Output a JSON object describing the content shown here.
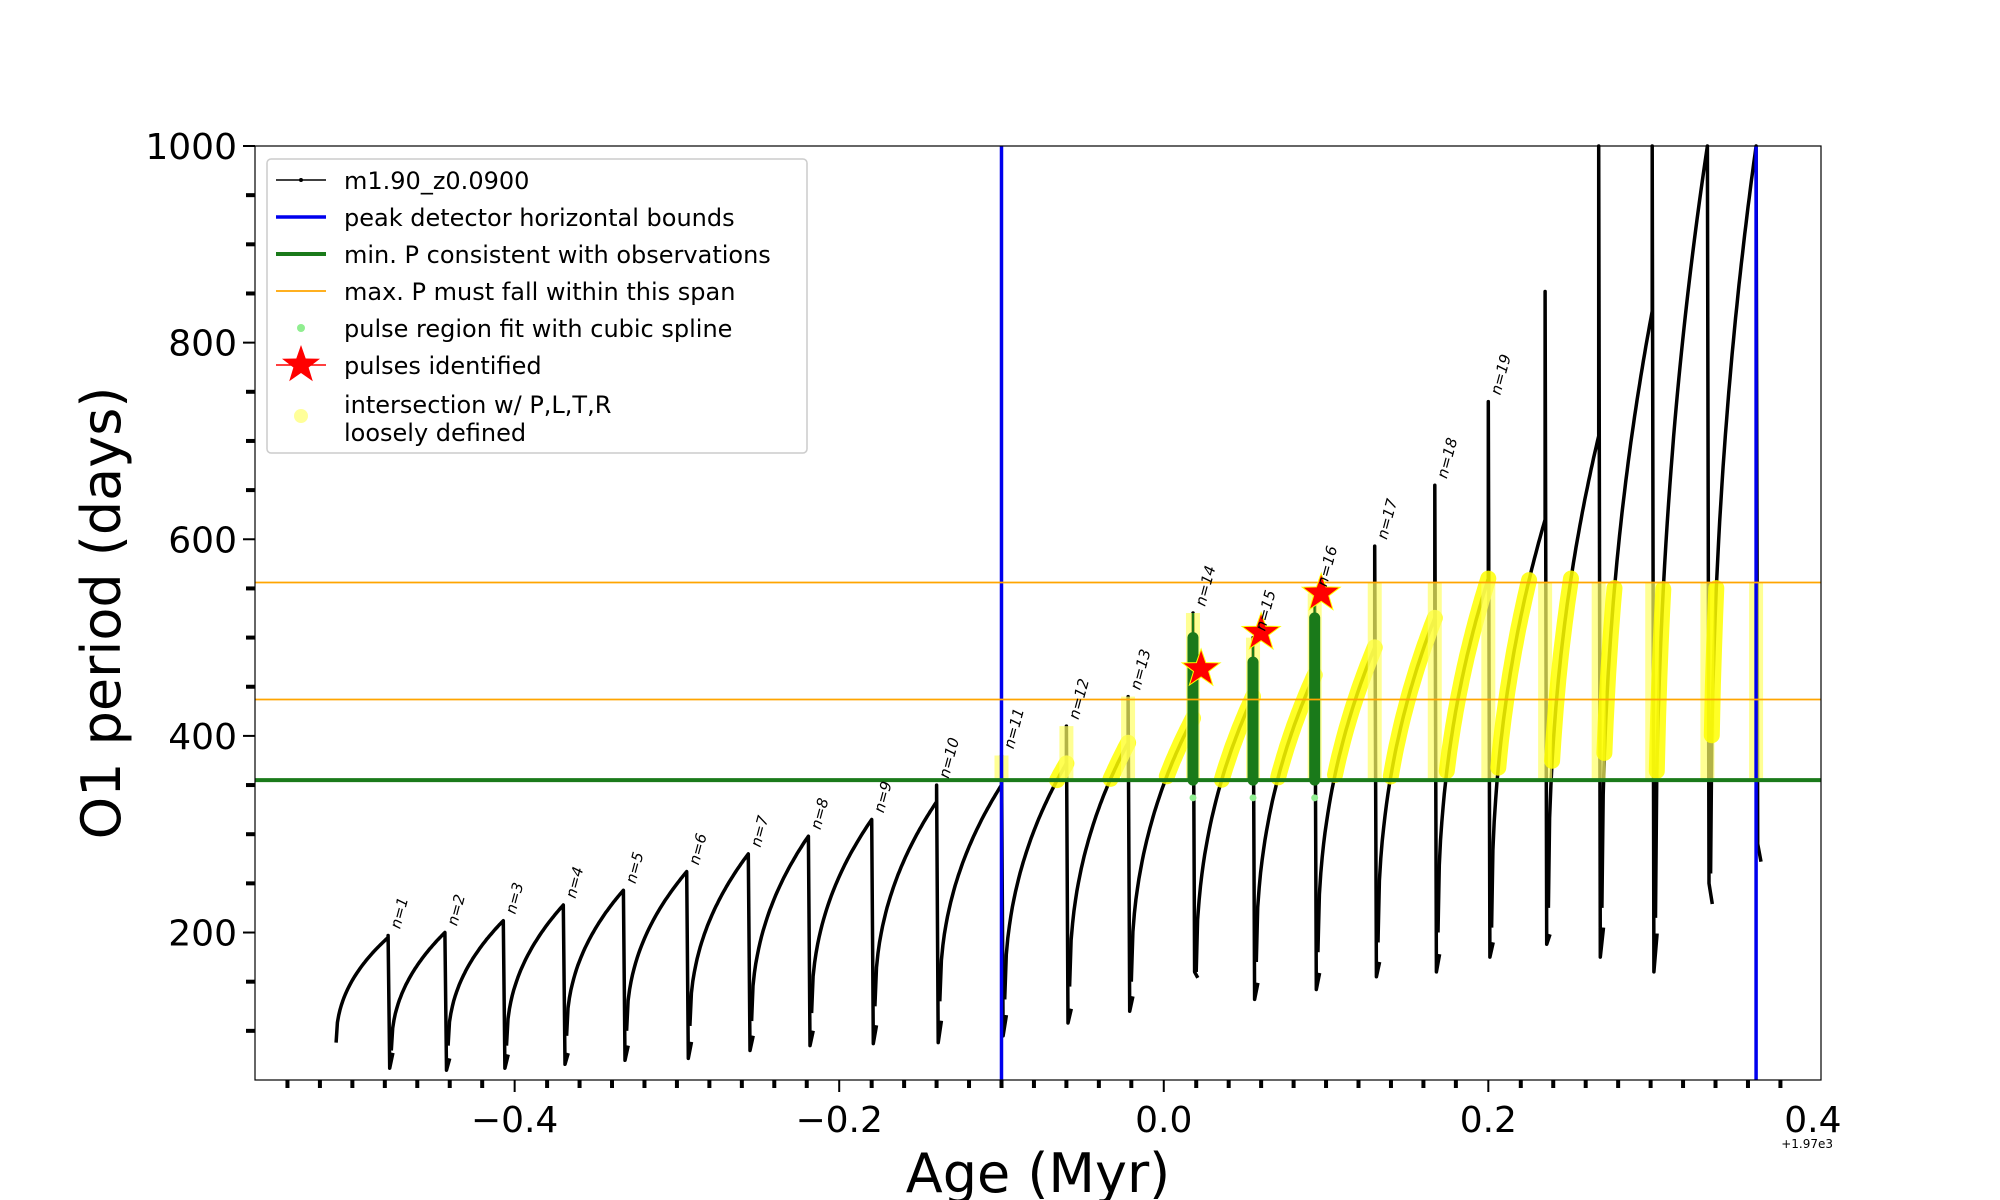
{
  "chart_data": {
    "type": "line",
    "xlabel": "Age (Myr)",
    "ylabel": "O1 period (days)",
    "x_offset_label": "+1.97e3",
    "xlim": [
      -0.56,
      0.405
    ],
    "ylim": [
      50,
      1000
    ],
    "x_ticks": [
      -0.4,
      -0.2,
      0.0,
      0.2,
      0.4
    ],
    "x_tick_labels": [
      "−0.4",
      "−0.2",
      "0.0",
      "0.2",
      "0.4"
    ],
    "y_ticks": [
      200,
      400,
      600,
      800,
      1000
    ],
    "y_tick_labels": [
      "200",
      "400",
      "600",
      "800",
      "1000"
    ],
    "grid": false,
    "legend_position": "top-left",
    "legend": [
      {
        "label": "m1.90_z0.0900",
        "kind": "line-marker",
        "color": "#000000"
      },
      {
        "label": "peak detector horizontal bounds",
        "kind": "line",
        "color": "#0000ee"
      },
      {
        "label": "min. P consistent with observations",
        "kind": "line-thick",
        "color": "#1a7a1a"
      },
      {
        "label": "max. P must fall within this span",
        "kind": "line-thin",
        "color": "#ffa500"
      },
      {
        "label": "pulse region fit with cubic spline",
        "kind": "dot",
        "color": "#90ee90"
      },
      {
        "label": "pulses identified",
        "kind": "star",
        "color": "#ff0000"
      },
      {
        "label": "intersection w/ P,L,T,R",
        "label2": "loosely defined",
        "kind": "dot",
        "color": "#ffff99"
      }
    ],
    "vertical_bounds": [
      -0.1,
      0.365
    ],
    "min_period": 355,
    "max_period_span": [
      437,
      556
    ],
    "series_name": "m1.90_z0.0900",
    "pulses": [
      {
        "label": "n=1",
        "x": -0.478,
        "start": -0.51,
        "p0": 88,
        "peak": 195,
        "spike": 197,
        "min": 62
      },
      {
        "label": "n=2",
        "x": -0.443,
        "start": -0.476,
        "p0": 80,
        "peak": 200,
        "spike": 200,
        "min": 60
      },
      {
        "label": "n=3",
        "x": -0.407,
        "start": -0.441,
        "p0": 85,
        "peak": 212,
        "spike": 212,
        "min": 62
      },
      {
        "label": "n=4",
        "x": -0.37,
        "start": -0.405,
        "p0": 85,
        "peak": 228,
        "spike": 228,
        "min": 66
      },
      {
        "label": "n=5",
        "x": -0.333,
        "start": -0.368,
        "p0": 95,
        "peak": 243,
        "spike": 243,
        "min": 70
      },
      {
        "label": "n=6",
        "x": -0.294,
        "start": -0.331,
        "p0": 100,
        "peak": 262,
        "spike": 262,
        "min": 72
      },
      {
        "label": "n=7",
        "x": -0.256,
        "start": -0.292,
        "p0": 105,
        "peak": 280,
        "spike": 280,
        "min": 80
      },
      {
        "label": "n=8",
        "x": -0.219,
        "start": -0.254,
        "p0": 110,
        "peak": 298,
        "spike": 298,
        "min": 85
      },
      {
        "label": "n=9",
        "x": -0.18,
        "start": -0.217,
        "p0": 118,
        "peak": 315,
        "spike": 315,
        "min": 87
      },
      {
        "label": "n=10",
        "x": -0.14,
        "start": -0.178,
        "p0": 125,
        "peak": 333,
        "spike": 350,
        "min": 88
      },
      {
        "label": "n=11",
        "x": -0.1,
        "start": -0.138,
        "p0": 130,
        "peak": 350,
        "spike": 380,
        "min": 95
      },
      {
        "label": "n=12",
        "x": -0.06,
        "start": -0.098,
        "p0": 132,
        "peak": 372,
        "spike": 410,
        "min": 108
      },
      {
        "label": "n=13",
        "x": -0.022,
        "start": -0.058,
        "p0": 145,
        "peak": 393,
        "spike": 440,
        "min": 120
      },
      {
        "label": "n=14",
        "x": 0.018,
        "start": -0.02,
        "p0": 150,
        "peak": 418,
        "spike": 525,
        "min": 160
      },
      {
        "label": "n=15",
        "x": 0.055,
        "start": 0.02,
        "p0": 160,
        "peak": 440,
        "spike": 500,
        "min": 132
      },
      {
        "label": "n=16",
        "x": 0.093,
        "start": 0.057,
        "p0": 170,
        "peak": 462,
        "spike": 545,
        "min": 142
      },
      {
        "label": "n=17",
        "x": 0.13,
        "start": 0.095,
        "p0": 180,
        "peak": 490,
        "spike": 593,
        "min": 155
      },
      {
        "label": "n=18",
        "x": 0.167,
        "start": 0.132,
        "p0": 190,
        "peak": 520,
        "spike": 655,
        "min": 160
      },
      {
        "label": "n=19",
        "x": 0.2,
        "start": 0.169,
        "p0": 200,
        "peak": 560,
        "spike": 740,
        "min": 175
      },
      {
        "label": "",
        "x": 0.235,
        "start": 0.202,
        "p0": 205,
        "peak": 620,
        "spike": 852,
        "min": 188
      },
      {
        "label": "",
        "x": 0.268,
        "start": 0.237,
        "p0": 225,
        "peak": 705,
        "spike": 1000,
        "min": 175
      },
      {
        "label": "",
        "x": 0.301,
        "start": 0.27,
        "p0": 225,
        "peak": 832,
        "spike": 1000,
        "min": 160
      },
      {
        "label": "",
        "x": 0.335,
        "start": 0.303,
        "p0": 215,
        "peak": 1000,
        "spike": 1000,
        "min": 250
      },
      {
        "label": "",
        "x": 0.365,
        "start": 0.337,
        "p0": 260,
        "peak": 1000,
        "spike": 1000,
        "min": 290
      }
    ],
    "highlight_pulse_indices": [
      13,
      14,
      15
    ],
    "stars": [
      {
        "x": 0.023,
        "y": 468
      },
      {
        "x": 0.06,
        "y": 505
      },
      {
        "x": 0.097,
        "y": 545
      }
    ]
  }
}
